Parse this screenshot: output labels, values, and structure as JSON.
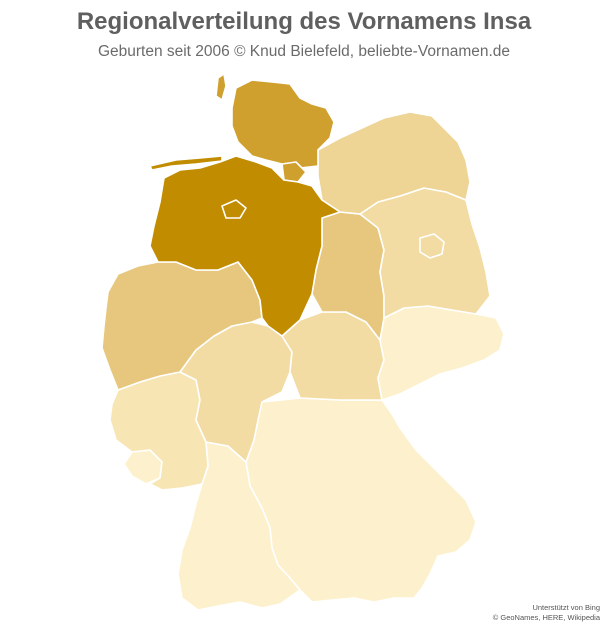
{
  "title": "Regionalverteilung des Vornamens Insa",
  "subtitle": "Geburten seit 2006  © Knud Bielefeld, beliebte-Vornamen.de",
  "attribution": {
    "line1": "Unterstützt von Bing",
    "line2": "© GeoNames, HERE, Wikipedia"
  },
  "map": {
    "shades": {
      "level1": "#fdf0cc",
      "level2": "#f7e5b4",
      "level3": "#f2dca3",
      "level4": "#eed495",
      "level5": "#e6c77d",
      "level6": "#d0a02e",
      "level7": "#c18c00"
    }
  }
}
